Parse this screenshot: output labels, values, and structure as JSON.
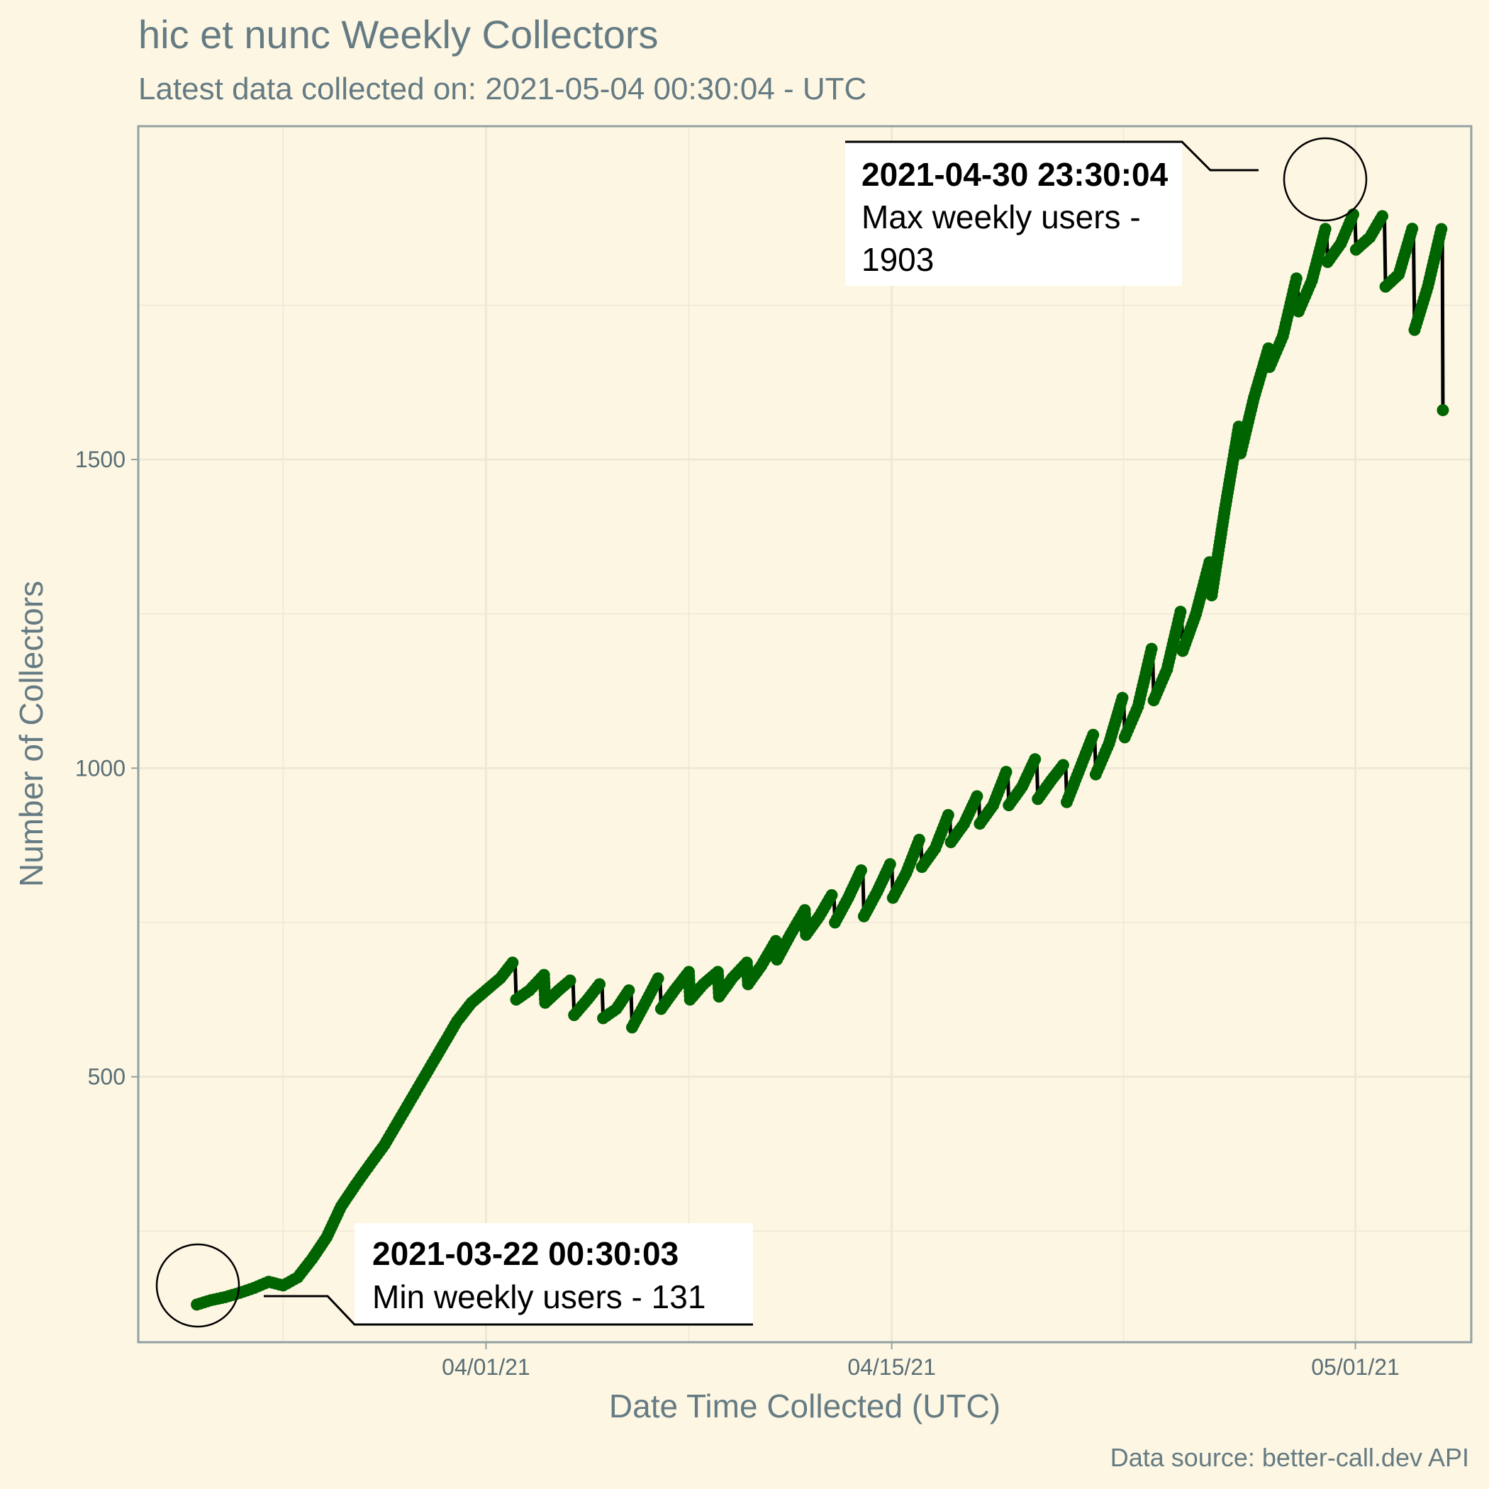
{
  "chart_data": {
    "type": "line",
    "title": "hic et nunc Weekly Collectors",
    "subtitle": "Latest data collected on: 2021-05-04 00:30:04  - UTC",
    "xlabel": "Date Time Collected (UTC)",
    "ylabel": "Number of Collectors",
    "caption": "Data source: better-call.dev API",
    "x_ticks": [
      "04/01/21",
      "04/15/21",
      "05/01/21"
    ],
    "y_ticks": [
      500,
      1000,
      1500
    ],
    "xlim": [
      "2021-03-20",
      "2021-05-05"
    ],
    "ylim": [
      70,
      2040
    ],
    "grid": true,
    "line_color": "#000000",
    "point_color": "#006400",
    "series": [
      {
        "points": [
          [
            "2021-03-22 00:30:03",
            131
          ],
          [
            "2021-03-22 12:00",
            138
          ],
          [
            "2021-03-23 00:00",
            143
          ],
          [
            "2021-03-23 12:00",
            150
          ],
          [
            "2021-03-24 00:00",
            158
          ],
          [
            "2021-03-24 12:00",
            168
          ],
          [
            "2021-03-25 00:00",
            162
          ],
          [
            "2021-03-25 12:00",
            175
          ],
          [
            "2021-03-26 00:00",
            205
          ],
          [
            "2021-03-26 12:00",
            240
          ],
          [
            "2021-03-27 00:00",
            290
          ],
          [
            "2021-03-27 12:00",
            325
          ],
          [
            "2021-03-28 00:00",
            358
          ],
          [
            "2021-03-28 12:00",
            390
          ],
          [
            "2021-03-29 00:00",
            430
          ],
          [
            "2021-03-29 12:00",
            470
          ],
          [
            "2021-03-30 00:00",
            510
          ],
          [
            "2021-03-30 12:00",
            550
          ],
          [
            "2021-03-31 00:00",
            590
          ],
          [
            "2021-03-31 12:00",
            620
          ],
          [
            "2021-04-01 00:00",
            640
          ],
          [
            "2021-04-01 12:00",
            660
          ],
          [
            "2021-04-02 00:00",
            690
          ],
          [
            "2021-04-02 01:00",
            625
          ],
          [
            "2021-04-02 12:00",
            640
          ],
          [
            "2021-04-03 00:00",
            665
          ],
          [
            "2021-04-03 01:00",
            620
          ],
          [
            "2021-04-03 12:00",
            640
          ],
          [
            "2021-04-04 00:00",
            660
          ],
          [
            "2021-04-04 01:00",
            600
          ],
          [
            "2021-04-04 12:00",
            625
          ],
          [
            "2021-04-05 00:00",
            655
          ],
          [
            "2021-04-05 01:00",
            595
          ],
          [
            "2021-04-05 12:00",
            610
          ],
          [
            "2021-04-06 00:00",
            645
          ],
          [
            "2021-04-06 01:00",
            580
          ],
          [
            "2021-04-06 12:00",
            620
          ],
          [
            "2021-04-07 00:00",
            665
          ],
          [
            "2021-04-07 01:00",
            610
          ],
          [
            "2021-04-07 12:00",
            640
          ],
          [
            "2021-04-08 00:00",
            670
          ],
          [
            "2021-04-08 01:00",
            625
          ],
          [
            "2021-04-08 12:00",
            650
          ],
          [
            "2021-04-09 00:00",
            670
          ],
          [
            "2021-04-09 01:00",
            630
          ],
          [
            "2021-04-09 12:00",
            660
          ],
          [
            "2021-04-10 00:00",
            685
          ],
          [
            "2021-04-10 01:00",
            650
          ],
          [
            "2021-04-10 12:00",
            680
          ],
          [
            "2021-04-11 00:00",
            720
          ],
          [
            "2021-04-11 01:00",
            690
          ],
          [
            "2021-04-11 12:00",
            730
          ],
          [
            "2021-04-12 00:00",
            770
          ],
          [
            "2021-04-12 01:00",
            730
          ],
          [
            "2021-04-12 12:00",
            760
          ],
          [
            "2021-04-13 00:00",
            800
          ],
          [
            "2021-04-13 01:00",
            750
          ],
          [
            "2021-04-13 12:00",
            790
          ],
          [
            "2021-04-14 00:00",
            840
          ],
          [
            "2021-04-14 01:00",
            760
          ],
          [
            "2021-04-14 12:00",
            800
          ],
          [
            "2021-04-15 00:00",
            850
          ],
          [
            "2021-04-15 01:00",
            790
          ],
          [
            "2021-04-15 12:00",
            830
          ],
          [
            "2021-04-16 00:00",
            890
          ],
          [
            "2021-04-16 01:00",
            840
          ],
          [
            "2021-04-16 12:00",
            870
          ],
          [
            "2021-04-17 00:00",
            930
          ],
          [
            "2021-04-17 01:00",
            880
          ],
          [
            "2021-04-17 12:00",
            910
          ],
          [
            "2021-04-18 00:00",
            960
          ],
          [
            "2021-04-18 01:00",
            910
          ],
          [
            "2021-04-18 12:00",
            940
          ],
          [
            "2021-04-19 00:00",
            1000
          ],
          [
            "2021-04-19 01:00",
            940
          ],
          [
            "2021-04-19 12:00",
            970
          ],
          [
            "2021-04-20 00:00",
            1020
          ],
          [
            "2021-04-20 01:00",
            950
          ],
          [
            "2021-04-20 12:00",
            980
          ],
          [
            "2021-04-21 00:00",
            1010
          ],
          [
            "2021-04-21 01:00",
            945
          ],
          [
            "2021-04-21 12:00",
            1000
          ],
          [
            "2021-04-22 00:00",
            1060
          ],
          [
            "2021-04-22 01:00",
            990
          ],
          [
            "2021-04-22 12:00",
            1040
          ],
          [
            "2021-04-23 00:00",
            1120
          ],
          [
            "2021-04-23 01:00",
            1050
          ],
          [
            "2021-04-23 12:00",
            1100
          ],
          [
            "2021-04-24 00:00",
            1200
          ],
          [
            "2021-04-24 01:00",
            1110
          ],
          [
            "2021-04-24 12:00",
            1160
          ],
          [
            "2021-04-25 00:00",
            1260
          ],
          [
            "2021-04-25 01:00",
            1190
          ],
          [
            "2021-04-25 12:00",
            1250
          ],
          [
            "2021-04-26 00:00",
            1340
          ],
          [
            "2021-04-26 01:00",
            1280
          ],
          [
            "2021-04-26 12:00",
            1420
          ],
          [
            "2021-04-27 00:00",
            1560
          ],
          [
            "2021-04-27 01:00",
            1510
          ],
          [
            "2021-04-27 12:00",
            1600
          ],
          [
            "2021-04-28 00:00",
            1680
          ],
          [
            "2021-04-28 01:00",
            1650
          ],
          [
            "2021-04-28 12:00",
            1700
          ],
          [
            "2021-04-29 00:00",
            1800
          ],
          [
            "2021-04-29 01:00",
            1740
          ],
          [
            "2021-04-29 12:00",
            1790
          ],
          [
            "2021-04-30 00:00",
            1880
          ],
          [
            "2021-04-30 01:00",
            1820
          ],
          [
            "2021-04-30 12:00",
            1850
          ],
          [
            "2021-04-30 23:30:04",
            1903
          ],
          [
            "2021-05-01 00:30",
            1840
          ],
          [
            "2021-05-01 12:00",
            1860
          ],
          [
            "2021-05-02 00:00",
            1900
          ],
          [
            "2021-05-02 01:00",
            1780
          ],
          [
            "2021-05-02 12:00",
            1800
          ],
          [
            "2021-05-03 00:00",
            1880
          ],
          [
            "2021-05-03 01:00",
            1710
          ],
          [
            "2021-05-03 12:00",
            1780
          ],
          [
            "2021-05-04 00:00",
            1880
          ],
          [
            "2021-05-04 00:30:04",
            1580
          ]
        ]
      }
    ],
    "annotations": [
      {
        "kind": "min",
        "date": "2021-03-22 00:30:03",
        "text": "Min weekly users - 131",
        "x": "2021-03-22 00:30:03",
        "y": 131
      },
      {
        "kind": "max",
        "date": "2021-04-30 23:30:04",
        "text_lines": [
          "Max weekly users -",
          "1903"
        ],
        "x": "2021-04-30 23:30:04",
        "y": 1903
      }
    ]
  },
  "colors": {
    "background": "#fdf6e3",
    "grid": "#eee8d5",
    "axis": "#93a1a1",
    "text": "#657b83",
    "ticks": "#586e75"
  }
}
